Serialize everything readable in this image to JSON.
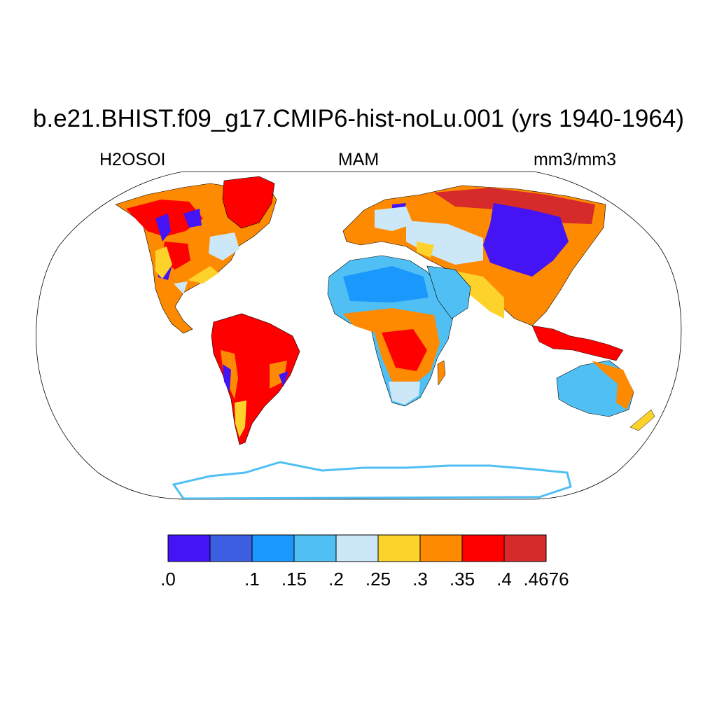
{
  "title": "b.e21.BHIST.f09_g17.CMIP6-hist-noLu.001 (yrs 1940-1964)",
  "left_subtitle": "H2OSOI",
  "center_subtitle": "MAM",
  "right_subtitle": "mm3/mm3",
  "colorbar": {
    "colors": [
      "#4414f5",
      "#3c5ee0",
      "#1a98fb",
      "#4fbff4",
      "#cce8f8",
      "#fdd22a",
      "#fd8a01",
      "#fe0000",
      "#d72a2a"
    ],
    "labels": [
      ".0",
      "",
      ".1",
      ".15",
      ".2",
      ".25",
      ".3",
      ".35",
      ".4",
      ".4676"
    ]
  },
  "map": {
    "projection": "Robinson",
    "variable": "H2OSOI",
    "season": "MAM",
    "units": "mm3/mm3"
  }
}
